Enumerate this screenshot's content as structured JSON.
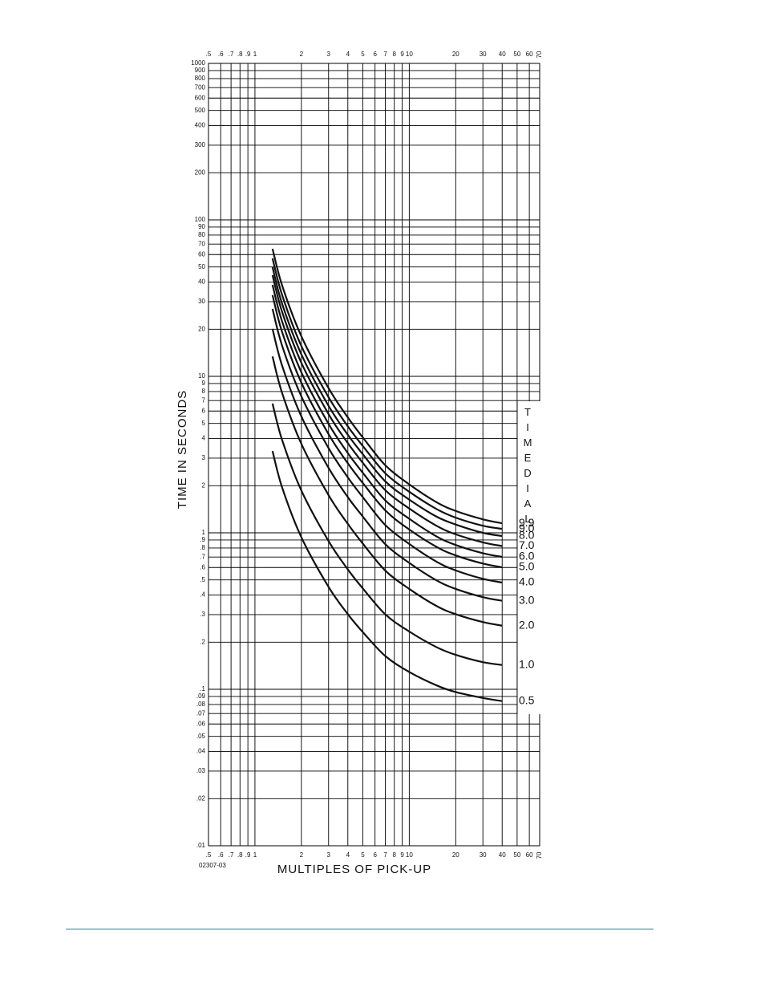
{
  "chart_data": {
    "type": "line",
    "y_label": "TIME IN SECONDS",
    "x_label": "MULTIPLES OF PICK-UP",
    "figure_code": "02307-03",
    "legend_title": "TIMEDIAL",
    "log_x": true,
    "log_y": true,
    "grid": true,
    "color": "#111111",
    "xlim": [
      0.5,
      70
    ],
    "ylim": [
      0.01,
      1000
    ],
    "xticks": [
      {
        "value": 0.5,
        "label": ".5"
      },
      {
        "value": 0.6,
        "label": ".6"
      },
      {
        "value": 0.7,
        "label": ".7"
      },
      {
        "value": 0.8,
        "label": ".8"
      },
      {
        "value": 0.9,
        "label": ".9"
      },
      1,
      2,
      3,
      4,
      5,
      6,
      7,
      8,
      9,
      10,
      20,
      30,
      40,
      50,
      60,
      70
    ],
    "yticks": [
      1000,
      900,
      800,
      700,
      600,
      500,
      400,
      300,
      200,
      100,
      90,
      80,
      70,
      60,
      50,
      40,
      30,
      20,
      10,
      9,
      8,
      7,
      6,
      5,
      4,
      3,
      2,
      1,
      {
        "value": 0.9,
        "label": ".9"
      },
      {
        "value": 0.8,
        "label": ".8"
      },
      {
        "value": 0.7,
        "label": ".7"
      },
      {
        "value": 0.6,
        "label": ".6"
      },
      {
        "value": 0.5,
        "label": ".5"
      },
      {
        "value": 0.4,
        "label": ".4"
      },
      {
        "value": 0.3,
        "label": ".3"
      },
      {
        "value": 0.2,
        "label": ".2"
      },
      {
        "value": 0.1,
        "label": ".1"
      },
      {
        "value": 0.09,
        "label": ".09"
      },
      {
        "value": 0.08,
        "label": ".08"
      },
      {
        "value": 0.07,
        "label": ".07"
      },
      {
        "value": 0.06,
        "label": ".06"
      },
      {
        "value": 0.05,
        "label": ".05"
      },
      {
        "value": 0.04,
        "label": ".04"
      },
      {
        "value": 0.03,
        "label": ".03"
      },
      {
        "value": 0.02,
        "label": ".02"
      },
      {
        "value": 0.01,
        "label": ".01"
      }
    ],
    "x": [
      1.3,
      1.5,
      2,
      3,
      4,
      5,
      7,
      10,
      15,
      20,
      30,
      40
    ],
    "series": [
      {
        "name": "9.9",
        "values": [
          65.3,
          38.1,
          18.0,
          8.41,
          5.46,
          4.07,
          2.7,
          2.04,
          1.57,
          1.38,
          1.22,
          1.15
        ]
      },
      {
        "name": "9.0",
        "values": [
          56.7,
          33.1,
          15.6,
          7.35,
          4.79,
          3.59,
          2.4,
          1.83,
          1.42,
          1.25,
          1.11,
          1.06
        ]
      },
      {
        "name": "8.0",
        "values": [
          49.8,
          29.1,
          13.8,
          6.48,
          4.23,
          3.18,
          2.13,
          1.63,
          1.27,
          1.13,
          1.0,
          0.954
        ]
      },
      {
        "name": "7.0",
        "values": [
          44.3,
          25.8,
          12.2,
          5.74,
          3.74,
          2.8,
          1.87,
          1.43,
          1.11,
          0.978,
          0.869,
          0.823
        ]
      },
      {
        "name": "6.0",
        "values": [
          38.4,
          22.4,
          10.6,
          4.97,
          3.23,
          2.42,
          1.61,
          1.23,
          0.949,
          0.836,
          0.741,
          0.702
        ]
      },
      {
        "name": "5.0",
        "values": [
          33.0,
          19.2,
          9.1,
          4.27,
          2.78,
          2.08,
          1.39,
          1.05,
          0.814,
          0.717,
          0.636,
          0.602
        ]
      },
      {
        "name": "4.0",
        "values": [
          27.0,
          15.7,
          7.44,
          3.48,
          2.26,
          1.69,
          1.12,
          0.849,
          0.654,
          0.575,
          0.508,
          0.481
        ]
      },
      {
        "name": "3.0",
        "values": [
          20.1,
          11.7,
          5.54,
          2.6,
          1.69,
          1.27,
          0.845,
          0.642,
          0.497,
          0.438,
          0.388,
          0.368
        ]
      },
      {
        "name": "2.0",
        "values": [
          13.4,
          7.82,
          3.7,
          1.74,
          1.14,
          0.853,
          0.573,
          0.438,
          0.341,
          0.302,
          0.269,
          0.255
        ]
      },
      {
        "name": "1.0",
        "values": [
          6.7,
          3.92,
          1.86,
          0.885,
          0.583,
          0.441,
          0.301,
          0.234,
          0.186,
          0.166,
          0.149,
          0.143
        ]
      },
      {
        "name": "0.5",
        "values": [
          3.33,
          1.95,
          0.935,
          0.451,
          0.302,
          0.232,
          0.163,
          0.129,
          0.106,
          0.096,
          0.088,
          0.084
        ]
      }
    ]
  }
}
